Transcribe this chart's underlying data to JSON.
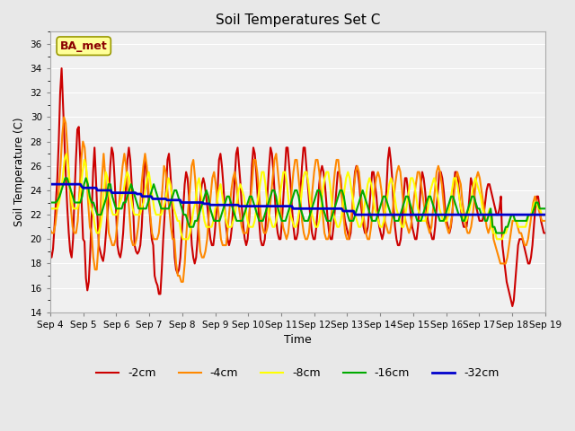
{
  "title": "Soil Temperatures Set C",
  "xlabel": "Time",
  "ylabel": "Soil Temperature (C)",
  "ylim": [
    14,
    37
  ],
  "yticks": [
    14,
    16,
    18,
    20,
    22,
    24,
    26,
    28,
    30,
    32,
    34,
    36
  ],
  "annotation": "BA_met",
  "annotation_box_color": "#ffff99",
  "annotation_text_color": "#8b0000",
  "background_color": "#e8e8e8",
  "plot_bg_color": "#f0f0f0",
  "series_colors": {
    "-2cm": "#cc0000",
    "-4cm": "#ff8800",
    "-8cm": "#ffff00",
    "-16cm": "#00aa00",
    "-32cm": "#0000cc"
  },
  "series_linewidth": {
    "-2cm": 1.5,
    "-4cm": 1.5,
    "-8cm": 1.5,
    "-16cm": 1.5,
    "-32cm": 2.0
  },
  "x_start_day": 4,
  "x_end_day": 19,
  "x_month": "Sep",
  "xtick_days": [
    4,
    5,
    6,
    7,
    8,
    9,
    10,
    11,
    12,
    13,
    14,
    15,
    16,
    17,
    18,
    19
  ],
  "t_2cm": [
    19.0,
    18.5,
    19.2,
    21.0,
    23.0,
    25.0,
    28.0,
    32.0,
    34.0,
    31.0,
    28.0,
    25.0,
    22.5,
    20.5,
    19.0,
    18.5,
    20.0,
    23.5,
    26.5,
    29.0,
    29.2,
    26.5,
    23.0,
    20.0,
    19.8,
    16.8,
    15.8,
    16.5,
    19.0,
    22.0,
    25.5,
    27.5,
    25.0,
    22.0,
    19.5,
    19.0,
    18.5,
    18.2,
    19.0,
    20.5,
    22.0,
    23.5,
    26.0,
    27.5,
    27.0,
    25.0,
    22.5,
    19.5,
    18.8,
    18.5,
    19.2,
    20.5,
    22.5,
    24.5,
    26.5,
    27.5,
    26.5,
    24.5,
    22.5,
    19.5,
    19.0,
    18.8,
    19.0,
    19.5,
    21.0,
    23.5,
    26.5,
    26.0,
    24.5,
    23.0,
    21.5,
    20.0,
    19.5,
    17.0,
    16.5,
    16.2,
    15.5,
    15.5,
    17.5,
    20.0,
    22.0,
    24.0,
    26.5,
    27.0,
    25.5,
    23.5,
    21.0,
    18.5,
    17.5,
    17.2,
    17.5,
    18.5,
    20.5,
    22.5,
    24.5,
    25.5,
    25.0,
    23.5,
    21.5,
    19.5,
    18.5,
    18.0,
    18.5,
    20.0,
    22.0,
    23.5,
    24.5,
    25.0,
    24.5,
    23.5,
    22.5,
    21.0,
    20.0,
    19.5,
    19.5,
    20.5,
    22.0,
    24.0,
    26.5,
    27.0,
    26.0,
    24.5,
    22.5,
    21.0,
    20.0,
    19.5,
    20.0,
    21.0,
    23.0,
    25.0,
    27.0,
    27.5,
    26.0,
    24.5,
    22.5,
    21.0,
    20.0,
    19.5,
    20.0,
    21.5,
    23.5,
    26.0,
    27.5,
    27.0,
    25.5,
    23.5,
    21.5,
    20.0,
    19.5,
    19.5,
    20.0,
    22.0,
    24.0,
    26.0,
    27.5,
    27.0,
    25.5,
    23.5,
    21.5,
    20.5,
    20.0,
    20.0,
    21.5,
    23.5,
    25.5,
    27.5,
    27.5,
    26.0,
    24.5,
    22.5,
    21.0,
    20.0,
    20.0,
    20.5,
    22.0,
    24.0,
    26.0,
    27.5,
    27.5,
    26.0,
    24.5,
    23.0,
    21.5,
    20.5,
    20.0,
    20.0,
    21.0,
    22.5,
    24.5,
    25.5,
    26.0,
    25.5,
    24.5,
    23.0,
    21.5,
    20.5,
    20.0,
    20.0,
    21.0,
    22.5,
    24.0,
    25.5,
    25.5,
    25.0,
    23.5,
    22.5,
    21.5,
    21.0,
    20.5,
    20.0,
    20.5,
    22.0,
    24.0,
    25.5,
    26.0,
    25.5,
    24.5,
    23.0,
    22.0,
    21.0,
    20.5,
    20.5,
    21.0,
    22.5,
    24.0,
    25.5,
    25.5,
    24.5,
    23.5,
    22.0,
    21.0,
    20.5,
    20.0,
    20.5,
    22.0,
    24.0,
    26.5,
    27.5,
    26.5,
    25.0,
    22.5,
    21.0,
    20.0,
    19.5,
    19.5,
    20.0,
    21.5,
    23.5,
    25.0,
    25.0,
    24.0,
    23.0,
    22.0,
    21.0,
    20.5,
    20.0,
    20.0,
    21.0,
    22.5,
    24.5,
    25.5,
    25.0,
    24.0,
    22.5,
    21.5,
    21.0,
    20.5,
    20.0,
    20.0,
    21.0,
    22.5,
    24.0,
    25.5,
    25.5,
    25.0,
    24.0,
    22.5,
    21.5,
    21.0,
    20.5,
    21.0,
    22.0,
    24.0,
    25.5,
    25.5,
    25.0,
    23.5,
    22.5,
    21.5,
    21.0,
    21.0,
    21.0,
    22.0,
    23.5,
    25.0,
    24.5,
    24.0,
    23.0,
    22.5,
    22.0,
    21.5,
    21.5,
    21.5,
    22.0,
    23.0,
    24.0,
    24.5,
    24.5,
    24.0,
    23.5,
    23.0,
    22.5,
    22.0,
    22.0,
    22.5,
    23.5,
    19.5,
    18.5,
    17.5,
    16.5,
    16.0,
    15.5,
    15.0,
    14.5,
    15.0,
    16.5,
    18.0,
    19.5,
    20.0,
    20.0,
    20.0,
    19.5,
    19.0,
    18.5,
    18.0,
    18.0,
    18.5,
    19.5,
    21.0,
    22.5,
    23.5,
    23.5,
    22.5,
    21.5,
    21.0,
    20.5,
    20.5
  ],
  "t_4cm": [
    20.8,
    20.5,
    20.5,
    21.2,
    22.5,
    24.0,
    26.0,
    28.5,
    30.0,
    29.5,
    27.5,
    25.0,
    22.5,
    21.0,
    20.5,
    20.5,
    21.5,
    24.0,
    26.5,
    28.0,
    27.5,
    25.5,
    23.0,
    21.0,
    20.5,
    18.5,
    17.5,
    17.5,
    19.5,
    22.0,
    25.0,
    27.0,
    25.0,
    22.5,
    20.5,
    20.0,
    19.5,
    19.5,
    20.0,
    21.5,
    23.0,
    24.5,
    26.0,
    27.0,
    26.0,
    24.0,
    22.0,
    20.0,
    19.5,
    19.5,
    20.0,
    21.0,
    22.5,
    24.5,
    26.0,
    27.0,
    26.0,
    24.0,
    22.0,
    20.5,
    20.0,
    20.0,
    20.0,
    20.5,
    22.0,
    24.0,
    26.0,
    25.5,
    24.0,
    22.5,
    21.0,
    20.0,
    20.0,
    18.0,
    17.0,
    17.0,
    16.5,
    16.5,
    18.0,
    20.5,
    22.5,
    24.0,
    26.0,
    26.5,
    25.0,
    23.0,
    21.0,
    19.0,
    18.5,
    18.5,
    19.0,
    20.0,
    22.0,
    23.5,
    25.0,
    25.5,
    24.5,
    23.0,
    21.5,
    20.0,
    19.5,
    19.5,
    19.5,
    21.0,
    22.5,
    24.0,
    25.0,
    25.5,
    24.5,
    23.0,
    22.0,
    21.0,
    20.5,
    20.5,
    20.5,
    21.5,
    23.0,
    24.5,
    26.5,
    26.5,
    25.5,
    24.0,
    22.0,
    21.0,
    20.5,
    20.5,
    21.0,
    22.0,
    23.5,
    25.0,
    26.5,
    27.0,
    25.5,
    24.0,
    22.0,
    21.0,
    20.5,
    20.0,
    20.5,
    22.0,
    24.0,
    25.5,
    26.5,
    26.5,
    25.0,
    23.5,
    21.5,
    20.5,
    20.0,
    20.0,
    20.5,
    22.0,
    24.0,
    25.5,
    26.5,
    26.5,
    25.5,
    23.5,
    22.0,
    20.5,
    20.0,
    20.0,
    20.5,
    22.0,
    24.0,
    25.5,
    26.5,
    26.5,
    25.0,
    23.5,
    22.0,
    20.5,
    20.0,
    20.0,
    21.0,
    22.5,
    24.0,
    25.5,
    26.0,
    25.5,
    24.0,
    22.5,
    21.5,
    20.5,
    20.0,
    20.0,
    21.0,
    22.5,
    24.0,
    25.0,
    25.5,
    25.0,
    24.0,
    22.5,
    21.5,
    21.0,
    20.5,
    20.5,
    21.5,
    23.0,
    24.5,
    25.5,
    26.0,
    25.5,
    24.0,
    22.5,
    21.5,
    21.0,
    20.5,
    21.0,
    22.0,
    23.5,
    24.5,
    25.5,
    25.5,
    24.5,
    23.5,
    22.5,
    21.5,
    21.0,
    20.5,
    21.0,
    22.5,
    24.0,
    25.5,
    26.0,
    25.5,
    24.5,
    23.0,
    21.5,
    21.0,
    20.5,
    21.0,
    22.0,
    23.5,
    25.0,
    25.5,
    25.0,
    24.5,
    23.0,
    22.0,
    21.0,
    20.5,
    20.5,
    21.0,
    22.0,
    23.5,
    25.0,
    25.5,
    25.0,
    24.0,
    23.0,
    22.0,
    21.0,
    20.5,
    21.0,
    22.0,
    20.0,
    19.5,
    19.0,
    18.5,
    18.0,
    18.0,
    18.0,
    18.0,
    18.5,
    19.5,
    20.5,
    21.5,
    21.5,
    21.5,
    21.0,
    20.5,
    20.5,
    20.0,
    19.5,
    19.5,
    20.0,
    21.0,
    22.0,
    23.0,
    23.5,
    23.0,
    22.5,
    22.0,
    21.5,
    21.5,
    21.5
  ],
  "t_8cm": [
    22.5,
    22.5,
    22.5,
    22.5,
    22.5,
    23.0,
    24.0,
    25.0,
    26.5,
    27.0,
    26.0,
    24.5,
    23.0,
    22.5,
    22.5,
    22.5,
    23.0,
    24.0,
    25.5,
    26.5,
    26.0,
    24.5,
    23.0,
    22.5,
    22.0,
    21.0,
    20.5,
    20.5,
    21.0,
    22.0,
    24.0,
    25.5,
    25.0,
    23.5,
    22.5,
    22.0,
    22.0,
    22.0,
    22.5,
    23.0,
    23.5,
    24.0,
    25.0,
    25.5,
    25.0,
    23.5,
    22.5,
    22.0,
    22.0,
    22.0,
    22.0,
    22.5,
    23.0,
    24.0,
    25.0,
    25.5,
    24.5,
    23.5,
    22.5,
    22.0,
    22.0,
    22.0,
    22.0,
    22.5,
    23.0,
    24.0,
    25.0,
    24.5,
    23.5,
    22.5,
    22.0,
    21.5,
    21.5,
    20.5,
    20.0,
    20.0,
    20.0,
    20.0,
    20.5,
    21.5,
    22.5,
    23.0,
    24.5,
    25.0,
    24.0,
    22.5,
    21.5,
    21.0,
    21.0,
    21.0,
    21.0,
    21.5,
    22.5,
    23.0,
    24.0,
    24.5,
    23.5,
    22.5,
    21.5,
    21.0,
    21.0,
    21.0,
    21.5,
    22.0,
    23.0,
    24.0,
    24.5,
    24.0,
    23.5,
    22.5,
    21.5,
    21.0,
    21.0,
    21.0,
    21.5,
    22.5,
    23.5,
    24.5,
    25.5,
    25.5,
    24.5,
    23.0,
    22.0,
    21.5,
    21.0,
    21.0,
    21.5,
    22.5,
    23.5,
    24.5,
    25.5,
    25.5,
    24.5,
    23.0,
    22.0,
    21.5,
    21.0,
    21.0,
    21.5,
    22.5,
    23.5,
    25.0,
    25.5,
    25.5,
    24.5,
    23.0,
    22.0,
    21.5,
    21.0,
    21.0,
    21.5,
    22.5,
    24.0,
    25.0,
    25.5,
    25.5,
    24.5,
    23.0,
    22.0,
    21.5,
    21.0,
    21.0,
    21.5,
    22.5,
    24.0,
    25.0,
    25.5,
    25.0,
    24.0,
    23.0,
    22.0,
    21.5,
    21.0,
    21.0,
    21.5,
    22.5,
    23.5,
    24.5,
    25.0,
    24.5,
    23.5,
    22.5,
    22.0,
    21.5,
    21.0,
    21.0,
    21.5,
    22.5,
    23.5,
    24.5,
    25.0,
    24.5,
    23.5,
    22.5,
    22.0,
    21.5,
    21.0,
    21.0,
    22.0,
    23.0,
    24.0,
    25.0,
    25.0,
    24.5,
    23.5,
    22.5,
    22.0,
    21.5,
    21.5,
    21.5,
    22.0,
    23.0,
    24.0,
    24.5,
    25.0,
    24.5,
    23.5,
    22.5,
    22.0,
    21.5,
    21.5,
    21.5,
    22.0,
    23.0,
    24.0,
    25.0,
    25.0,
    24.5,
    23.5,
    22.5,
    22.0,
    21.5,
    21.5,
    22.0,
    22.5,
    23.5,
    24.5,
    25.0,
    24.5,
    24.0,
    23.5,
    22.5,
    22.0,
    22.0,
    22.0,
    22.5,
    21.0,
    20.5,
    20.5,
    20.0,
    20.0,
    20.0,
    20.0,
    20.5,
    20.5,
    21.0,
    21.5,
    22.0,
    22.0,
    21.5,
    21.5,
    21.0,
    21.0,
    21.0,
    21.0,
    21.0,
    21.5,
    22.0,
    22.0,
    22.5,
    23.0,
    23.0,
    22.5,
    22.5,
    22.0,
    22.0,
    22.0
  ],
  "t_16cm": [
    23.0,
    23.0,
    23.0,
    23.0,
    23.2,
    23.5,
    24.0,
    24.5,
    25.0,
    25.0,
    24.5,
    24.0,
    23.5,
    23.0,
    23.0,
    23.0,
    23.0,
    23.5,
    24.5,
    25.0,
    24.5,
    23.5,
    23.0,
    23.0,
    22.5,
    22.0,
    22.0,
    22.0,
    22.5,
    23.0,
    23.5,
    24.5,
    24.5,
    23.5,
    23.0,
    22.5,
    22.5,
    22.5,
    22.5,
    23.0,
    23.0,
    23.5,
    24.0,
    24.5,
    24.0,
    23.5,
    23.0,
    22.5,
    22.5,
    22.5,
    22.5,
    22.5,
    23.0,
    23.5,
    24.0,
    24.5,
    24.0,
    23.5,
    23.0,
    22.5,
    22.5,
    22.5,
    22.5,
    22.5,
    23.0,
    23.5,
    24.0,
    24.0,
    23.5,
    23.0,
    22.5,
    22.0,
    22.0,
    21.5,
    21.0,
    21.0,
    21.0,
    21.5,
    21.5,
    22.0,
    22.5,
    23.0,
    23.5,
    24.0,
    23.5,
    22.5,
    22.0,
    21.5,
    21.5,
    21.5,
    21.5,
    22.0,
    22.5,
    23.0,
    23.5,
    23.5,
    23.0,
    22.5,
    22.0,
    21.5,
    21.5,
    21.5,
    21.5,
    22.0,
    22.5,
    23.0,
    23.5,
    23.5,
    23.0,
    22.5,
    22.0,
    21.5,
    21.5,
    21.5,
    22.0,
    22.5,
    23.0,
    23.5,
    24.0,
    24.0,
    23.5,
    22.5,
    22.0,
    21.5,
    21.5,
    21.5,
    22.0,
    22.5,
    23.0,
    23.5,
    24.0,
    24.0,
    23.5,
    22.5,
    22.0,
    21.5,
    21.5,
    21.5,
    22.0,
    22.5,
    23.0,
    23.5,
    24.0,
    24.0,
    23.5,
    22.5,
    22.0,
    21.5,
    21.5,
    21.5,
    22.0,
    22.5,
    23.0,
    23.5,
    24.0,
    24.0,
    23.5,
    22.5,
    22.0,
    21.5,
    21.5,
    21.5,
    22.0,
    22.5,
    23.0,
    23.5,
    24.0,
    23.5,
    23.0,
    22.5,
    22.0,
    21.5,
    21.5,
    21.5,
    22.0,
    22.5,
    23.0,
    23.5,
    23.5,
    23.0,
    22.5,
    22.0,
    22.0,
    21.5,
    21.5,
    21.5,
    22.0,
    22.5,
    23.0,
    23.5,
    23.5,
    23.0,
    22.5,
    22.0,
    22.0,
    21.5,
    21.5,
    21.5,
    22.0,
    22.5,
    23.0,
    23.5,
    23.5,
    23.0,
    22.5,
    22.0,
    22.0,
    21.5,
    21.5,
    21.5,
    22.0,
    22.5,
    23.0,
    23.5,
    23.5,
    23.0,
    22.5,
    22.0,
    22.0,
    21.5,
    21.5,
    22.0,
    22.5,
    23.0,
    23.5,
    23.5,
    23.0,
    22.5,
    22.5,
    22.0,
    22.0,
    21.5,
    21.5,
    22.0,
    22.5,
    21.0,
    21.0,
    20.5,
    20.5,
    20.5,
    20.5,
    20.5,
    21.0,
    21.0,
    21.5,
    22.0,
    22.0,
    21.5,
    21.5,
    21.5,
    21.5,
    21.5,
    21.5,
    21.5,
    22.0,
    22.0,
    22.0,
    22.5,
    23.0,
    23.0,
    22.5,
    22.5,
    22.5,
    22.5
  ],
  "t_32cm": [
    24.5,
    24.5,
    24.5,
    24.5,
    24.5,
    24.5,
    24.5,
    24.5,
    24.5,
    24.5,
    24.5,
    24.5,
    24.5,
    24.5,
    24.5,
    24.5,
    24.5,
    24.5,
    24.5,
    24.5,
    24.5,
    24.5,
    24.5,
    24.5,
    24.3,
    24.2,
    24.2,
    24.2,
    24.2,
    24.2,
    24.2,
    24.2,
    24.2,
    24.2,
    24.2,
    24.2,
    24.0,
    24.0,
    24.0,
    24.0,
    24.0,
    24.0,
    24.0,
    24.0,
    24.0,
    24.0,
    24.0,
    23.8,
    23.8,
    23.8,
    23.8,
    23.8,
    23.8,
    23.8,
    23.8,
    23.8,
    23.8,
    23.8,
    23.8,
    23.8,
    23.8,
    23.8,
    23.8,
    23.8,
    23.8,
    23.8,
    23.7,
    23.7,
    23.7,
    23.7,
    23.5,
    23.5,
    23.5,
    23.5,
    23.5,
    23.5,
    23.5,
    23.5,
    23.3,
    23.3,
    23.3,
    23.3,
    23.3,
    23.3,
    23.3,
    23.3,
    23.3,
    23.3,
    23.3,
    23.2,
    23.2,
    23.2,
    23.2,
    23.2,
    23.2,
    23.2,
    23.2,
    23.2,
    23.2,
    23.2,
    23.0,
    23.0,
    23.0,
    23.0,
    23.0,
    23.0,
    23.0,
    23.0,
    23.0,
    23.0,
    23.0,
    23.0,
    23.0,
    23.0,
    23.0,
    23.0,
    23.0,
    22.9,
    22.9,
    22.9,
    22.9,
    22.9,
    22.8,
    22.8,
    22.8,
    22.8,
    22.8,
    22.8,
    22.8,
    22.8,
    22.8,
    22.8,
    22.8,
    22.8,
    22.8,
    22.8,
    22.8,
    22.8,
    22.8,
    22.8,
    22.8,
    22.8,
    22.8,
    22.8,
    22.7,
    22.7,
    22.7,
    22.7,
    22.7,
    22.7,
    22.7,
    22.7,
    22.7,
    22.7,
    22.7,
    22.7,
    22.7,
    22.7,
    22.7,
    22.7,
    22.7,
    22.7,
    22.7,
    22.7,
    22.7,
    22.7,
    22.7,
    22.7,
    22.7,
    22.7,
    22.7,
    22.7,
    22.7,
    22.7,
    22.7,
    22.7,
    22.7,
    22.7,
    22.7,
    22.7,
    22.7,
    22.7,
    22.7,
    22.7,
    22.7,
    22.5,
    22.5,
    22.5,
    22.5,
    22.5,
    22.5,
    22.5,
    22.5,
    22.5,
    22.5,
    22.5,
    22.5,
    22.5,
    22.5,
    22.5,
    22.5,
    22.5,
    22.5,
    22.5,
    22.5,
    22.5,
    22.5,
    22.5,
    22.5,
    22.5,
    22.5,
    22.5,
    22.5,
    22.5,
    22.5,
    22.5,
    22.5,
    22.5,
    22.5,
    22.5,
    22.5,
    22.5,
    22.5,
    22.3,
    22.3,
    22.3,
    22.3,
    22.3,
    22.3,
    22.3,
    22.3,
    22.3,
    22.0,
    22.0,
    22.0,
    22.0,
    22.0,
    22.0,
    22.0,
    22.0,
    22.0,
    22.0,
    22.0,
    22.0,
    22.0,
    22.0,
    22.0,
    22.0,
    22.0,
    22.0,
    22.0,
    22.0,
    22.0,
    22.0,
    22.0,
    22.0,
    22.0,
    22.0,
    22.0,
    22.0,
    22.0,
    22.0,
    22.0,
    22.0,
    22.0,
    22.0,
    22.0,
    22.0,
    22.0,
    22.0,
    22.0,
    22.0,
    22.0,
    22.0,
    22.0,
    22.0,
    22.0,
    22.0,
    22.0,
    22.0,
    22.0,
    22.0,
    22.0,
    22.0,
    22.0,
    22.0,
    22.0,
    22.0,
    22.0,
    22.0,
    22.0,
    22.0,
    22.0,
    22.0,
    22.0,
    22.0,
    22.0,
    22.0,
    22.0,
    22.0,
    22.0,
    22.0,
    22.0,
    22.0,
    22.0,
    22.0,
    22.0,
    22.0,
    22.0,
    22.0,
    22.0,
    22.0,
    22.0,
    22.0,
    22.0,
    22.0,
    22.0,
    22.0,
    22.0,
    22.0,
    22.0,
    22.0,
    22.0,
    22.0,
    22.0,
    22.0,
    22.0,
    22.0,
    22.0,
    22.0,
    22.0,
    22.0,
    22.0,
    22.0,
    22.0,
    22.0,
    22.0,
    22.0,
    22.0,
    22.0,
    22.0,
    22.0,
    22.0,
    22.0,
    22.0,
    22.0,
    22.0,
    22.0,
    22.0,
    22.0,
    22.0,
    22.0,
    22.0,
    22.0,
    22.0,
    22.0,
    22.0,
    22.0,
    22.0,
    22.0,
    22.0,
    22.0,
    22.0,
    22.0,
    22.0,
    22.0,
    22.0,
    22.0,
    22.0,
    22.0,
    22.0,
    22.0,
    22.0,
    22.0,
    22.0,
    22.0,
    22.0,
    22.0
  ]
}
